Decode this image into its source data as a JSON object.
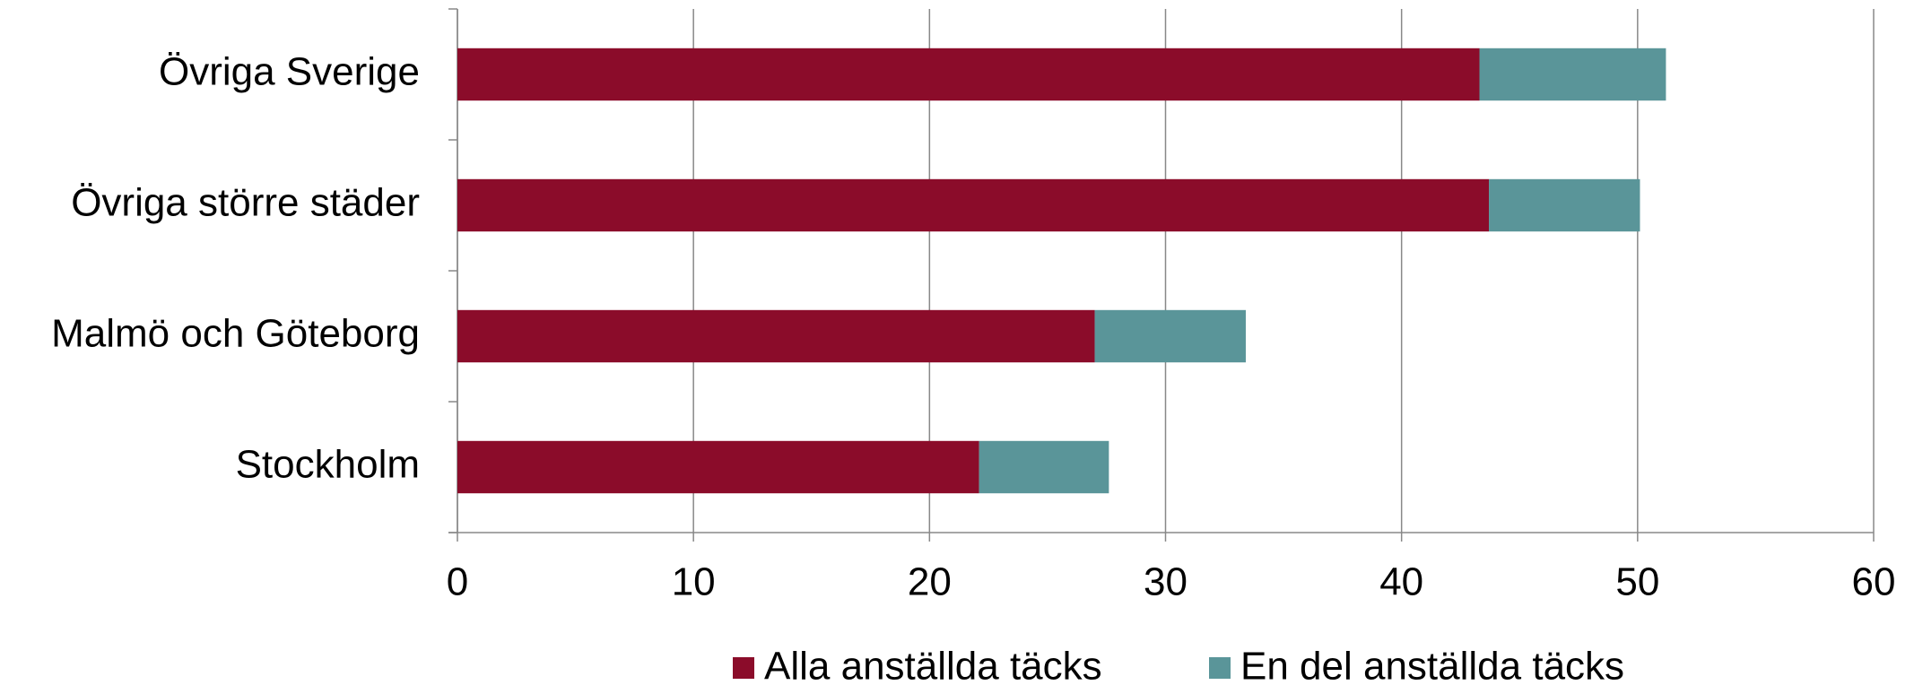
{
  "chart_data": {
    "type": "bar",
    "orientation": "horizontal",
    "stacked": true,
    "categories": [
      "Övriga Sverige",
      "Övriga större städer",
      "Malmö och Göteborg",
      "Stockholm"
    ],
    "series": [
      {
        "name": "Alla anställda täcks",
        "color": "#8b0c2a",
        "values": [
          43.3,
          43.7,
          27.0,
          22.1
        ]
      },
      {
        "name": "En del anställda täcks",
        "color": "#5a9599",
        "values": [
          7.9,
          6.4,
          6.4,
          5.5
        ]
      }
    ],
    "xlim": [
      0,
      60
    ],
    "xticks": [
      0,
      10,
      20,
      30,
      40,
      50,
      60
    ],
    "grid": true,
    "legend": "bottom"
  }
}
